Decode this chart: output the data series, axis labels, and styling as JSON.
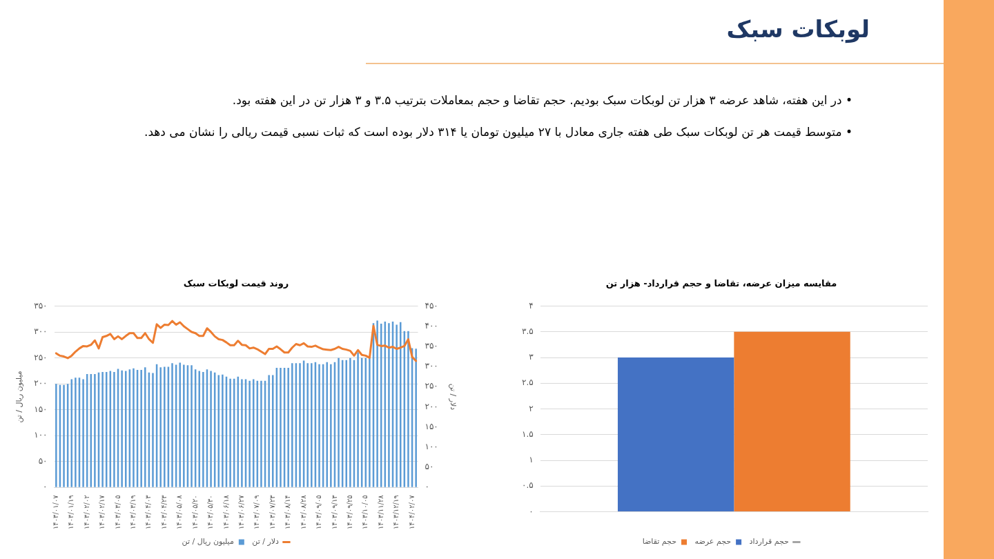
{
  "chart_data": [
    {
      "type": "other",
      "title": "لوبکات سبک",
      "annotations": [
        "•  در این هفته، شاهد عرضه ۳ هزار تن لوبکات سبک بودیم. حجم تقاضا و حجم بمعاملات بترتیب ۳.۵ و ۳ هزار تن در این هفته بود.",
        "•  متوسط قیمت هر تن لوبکات سبک طی هفته جاری معادل با ۲۷ میلیون تومان یا ۳۱۴ دلار بوده است که ثبات نسبی قیمت ریالی را نشان می دهد."
      ]
    },
    {
      "type": "bar",
      "title": "مقایسه میزان عرضه، تقاضا و حجم قرارداد- هزار تن",
      "categories": [
        null
      ],
      "grid": "y",
      "legend": "bottom",
      "ylim": [
        0,
        4
      ],
      "yticks": [
        {
          "value": 0,
          "label": "۰"
        },
        {
          "value": 0.5,
          "label": "۰.۵"
        },
        {
          "value": 1,
          "label": "۱"
        },
        {
          "value": 1.5,
          "label": "۱.۵"
        },
        {
          "value": 2,
          "label": "۲"
        },
        {
          "value": 2.5,
          "label": "۲.۵"
        },
        {
          "value": 3,
          "label": "۳"
        },
        {
          "value": 3.5,
          "label": "۳.۵"
        },
        {
          "value": 4,
          "label": "۴"
        }
      ],
      "series": [
        {
          "name": "حجم عرضه",
          "color": "#4472c4",
          "values": [
            3
          ]
        },
        {
          "name": "حجم تقاضا",
          "color": "#ed7d31",
          "values": [
            3.5
          ]
        },
        {
          "name": "حجم قرارداد",
          "color": "#a5a5a5",
          "type": "line",
          "values": [
            null
          ]
        }
      ]
    },
    {
      "type": "bar",
      "title": "روند قیمت لوبکات سبک",
      "ylabel": "میلیون ریال / تن",
      "y2label": "دلار / تن",
      "grid": "y",
      "legend": "bottom",
      "marker": "none",
      "categories": [
        "۱۴۰۳/۰۱/۰۷",
        null,
        null,
        null,
        "۱۴۰۳/۰۱/۱۹",
        null,
        null,
        null,
        "۱۴۰۳/۰۲/۰۲",
        null,
        null,
        null,
        "۱۴۰۳/۰۲/۱۷",
        null,
        null,
        null,
        "۱۴۰۳/۰۳/۰۵",
        null,
        null,
        null,
        "۱۴۰۳/۰۳/۱۹",
        null,
        null,
        null,
        "۱۴۰۳/۰۴/۰۳",
        null,
        null,
        null,
        "۱۴۰۳/۰۴/۲۳",
        null,
        null,
        null,
        "۱۴۰۳/۰۵/۰۸",
        null,
        null,
        null,
        "۱۴۰۳/۰۵/۲۰",
        null,
        null,
        null,
        "۱۴۰۳/۰۵/۳۰",
        null,
        null,
        null,
        "۱۴۰۳/۰۶/۱۸",
        null,
        null,
        null,
        "۱۴۰۳/۰۶/۲۷",
        null,
        null,
        null,
        "۱۴۰۳/۰۷/۰۹",
        null,
        null,
        null,
        "۱۴۰۳/۰۷/۲۳",
        null,
        null,
        null,
        "۱۴۰۳/۰۸/۱۴",
        null,
        null,
        null,
        "۱۴۰۳/۰۸/۲۸",
        null,
        null,
        null,
        "۱۴۰۳/۰۹/۰۵",
        null,
        null,
        null,
        "۱۴۰۳/۰۹/۱۳",
        null,
        null,
        null,
        "۱۴۰۳/۰۹/۲۵",
        null,
        null,
        null,
        "۱۴۰۳/۱۰/۰۵",
        null,
        null,
        null,
        "۱۴۰۳/۱۱/۲۸",
        null,
        null,
        null,
        "۱۴۰۳/۱۲/۱۹",
        null,
        null,
        null,
        "۱۴۰۴/۰۲/۰۷",
        null
      ],
      "ylim": [
        0,
        350
      ],
      "yticks": [
        {
          "value": 0,
          "label": "۰"
        },
        {
          "value": 50,
          "label": "۵۰"
        },
        {
          "value": 100,
          "label": "۱۰۰"
        },
        {
          "value": 150,
          "label": "۱۵۰"
        },
        {
          "value": 200,
          "label": "۲۰۰"
        },
        {
          "value": 250,
          "label": "۲۵۰"
        },
        {
          "value": 300,
          "label": "۳۰۰"
        },
        {
          "value": 350,
          "label": "۳۵۰"
        }
      ],
      "y2lim": [
        0,
        450
      ],
      "y2ticks": [
        {
          "value": 0,
          "label": "۰"
        },
        {
          "value": 50,
          "label": "۵۰"
        },
        {
          "value": 100,
          "label": "۱۰۰"
        },
        {
          "value": 150,
          "label": "۱۵۰"
        },
        {
          "value": 200,
          "label": "۲۰۰"
        },
        {
          "value": 250,
          "label": "۲۵۰"
        },
        {
          "value": 300,
          "label": "۳۰۰"
        },
        {
          "value": 350,
          "label": "۳۵۰"
        },
        {
          "value": 400,
          "label": "۴۰۰"
        },
        {
          "value": 450,
          "label": "۴۵۰"
        }
      ],
      "series": [
        {
          "name": "میلیون ریال / تن",
          "color": "#5b9bd5",
          "values": [
            200,
            198,
            198,
            200,
            209,
            212,
            212,
            209,
            219,
            219,
            219,
            222,
            223,
            223,
            225,
            223,
            229,
            226,
            225,
            228,
            230,
            227,
            227,
            232,
            222,
            221,
            238,
            232,
            233,
            233,
            240,
            237,
            241,
            237,
            236,
            236,
            228,
            225,
            223,
            228,
            225,
            222,
            217,
            218,
            214,
            210,
            210,
            214,
            209,
            209,
            206,
            209,
            206,
            206,
            206,
            217,
            217,
            231,
            231,
            231,
            231,
            240,
            240,
            240,
            245,
            240,
            240,
            242,
            238,
            238,
            242,
            238,
            242,
            250,
            246,
            246,
            250,
            246,
            261,
            250,
            250,
            250,
            317,
            322,
            316,
            320,
            317,
            320,
            314,
            319,
            302,
            302,
            269,
            268
          ]
        },
        {
          "name": "دلار / تن",
          "color": "#ed7d31",
          "type": "line",
          "axis": "y2",
          "values": [
            333,
            327,
            325,
            321,
            327,
            337,
            345,
            351,
            350,
            354,
            365,
            345,
            373,
            376,
            381,
            368,
            375,
            368,
            376,
            383,
            383,
            371,
            371,
            383,
            368,
            359,
            405,
            396,
            404,
            403,
            413,
            404,
            410,
            400,
            393,
            386,
            383,
            376,
            376,
            395,
            386,
            375,
            368,
            366,
            360,
            353,
            353,
            364,
            354,
            353,
            345,
            347,
            343,
            337,
            331,
            344,
            344,
            350,
            343,
            335,
            335,
            347,
            356,
            353,
            358,
            350,
            349,
            352,
            347,
            343,
            342,
            341,
            344,
            349,
            344,
            342,
            339,
            327,
            341,
            329,
            327,
            322,
            401,
            354,
            351,
            352,
            347,
            349,
            344,
            347,
            351,
            368,
            324,
            314
          ]
        }
      ]
    }
  ]
}
